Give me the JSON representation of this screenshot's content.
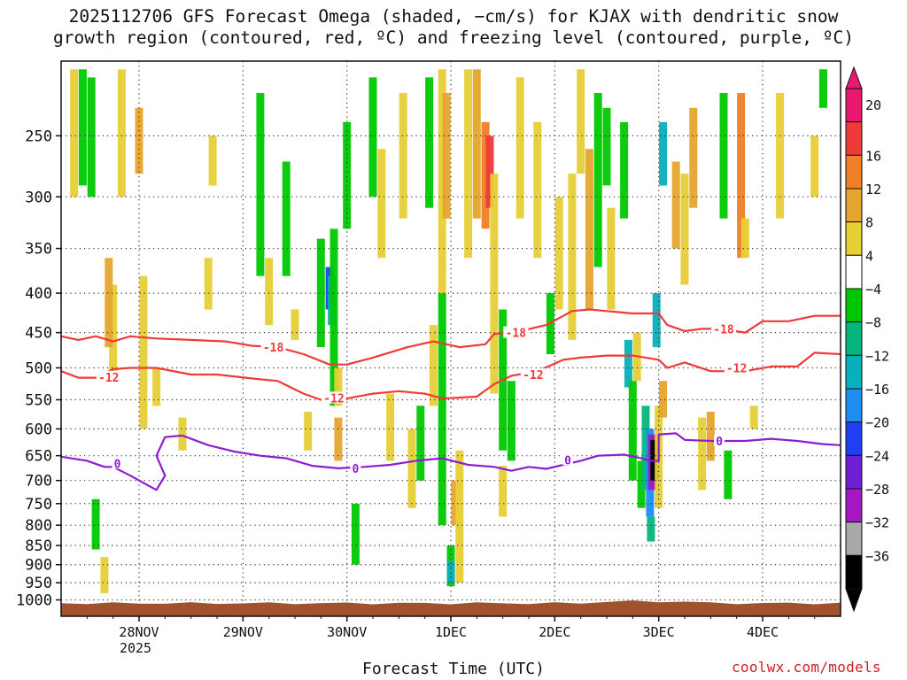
{
  "chart_data": {
    "type": "heatmap",
    "title_line1": "2025112706 GFS Forecast Omega (shaded, −cm/s) for KJAX with dendritic snow",
    "title_line2": "growth region (contoured, red, ºC) and freezing level (contoured, purple, ºC)",
    "xlabel": "Forecast Time (UTC)",
    "ylabel": "",
    "x_ticks": [
      {
        "label": "28NOV",
        "sub": "2025",
        "hours": 18
      },
      {
        "label": "29NOV",
        "sub": "",
        "hours": 42
      },
      {
        "label": "30NOV",
        "sub": "",
        "hours": 66
      },
      {
        "label": "1DEC",
        "sub": "",
        "hours": 90
      },
      {
        "label": "2DEC",
        "sub": "",
        "hours": 114
      },
      {
        "label": "3DEC",
        "sub": "",
        "hours": 138
      },
      {
        "label": "4DEC",
        "sub": "",
        "hours": 162
      }
    ],
    "x_range_hours": [
      0,
      180
    ],
    "y_axis": "pressure_hPa",
    "y_range": [
      200,
      1050
    ],
    "y_ticks": [
      250,
      300,
      350,
      400,
      450,
      500,
      550,
      600,
      650,
      700,
      750,
      800,
      850,
      900,
      950,
      1000
    ],
    "grid": true,
    "colorbar": {
      "levels": [
        20,
        16,
        12,
        8,
        4,
        -4,
        -8,
        -12,
        -16,
        -20,
        -24,
        -28,
        -32,
        -36
      ],
      "colors": [
        "#e8196f",
        "#ef3a3a",
        "#f07f27",
        "#e6a52e",
        "#e7cf36",
        "#ffffff",
        "#00c800",
        "#05b67c",
        "#06b0bc",
        "#1c8ef0",
        "#1e3ff2",
        "#6d20d6",
        "#a617c2",
        "#a8a8a8",
        "#000000"
      ],
      "top_color": "#e8196f",
      "bottom_color": "#000000"
    },
    "omega_cells": [
      {
        "t": 3,
        "p0": 205,
        "p1": 300,
        "v": 6
      },
      {
        "t": 5,
        "p0": 205,
        "p1": 290,
        "v": -6
      },
      {
        "t": 7,
        "p0": 210,
        "p1": 300,
        "v": -6
      },
      {
        "t": 12,
        "p0": 390,
        "p1": 520,
        "v": 5
      },
      {
        "t": 14,
        "p0": 205,
        "p1": 300,
        "v": 6
      },
      {
        "t": 11,
        "p0": 360,
        "p1": 470,
        "v": 10
      },
      {
        "t": 18,
        "p0": 230,
        "p1": 280,
        "v": 9
      },
      {
        "t": 19,
        "p0": 380,
        "p1": 600,
        "v": 5
      },
      {
        "t": 8,
        "p0": 740,
        "p1": 860,
        "v": -6
      },
      {
        "t": 10,
        "p0": 880,
        "p1": 980,
        "v": 5
      },
      {
        "t": 22,
        "p0": 500,
        "p1": 560,
        "v": 5
      },
      {
        "t": 28,
        "p0": 580,
        "p1": 640,
        "v": 5
      },
      {
        "t": 34,
        "p0": 360,
        "p1": 420,
        "v": 5
      },
      {
        "t": 35,
        "p0": 250,
        "p1": 290,
        "v": 5
      },
      {
        "t": 46,
        "p0": 220,
        "p1": 380,
        "v": -6
      },
      {
        "t": 48,
        "p0": 360,
        "p1": 440,
        "v": 5
      },
      {
        "t": 52,
        "p0": 270,
        "p1": 380,
        "v": -6
      },
      {
        "t": 54,
        "p0": 420,
        "p1": 460,
        "v": 5
      },
      {
        "t": 57,
        "p0": 570,
        "p1": 640,
        "v": 5
      },
      {
        "t": 60,
        "p0": 340,
        "p1": 470,
        "v": -7
      },
      {
        "t": 62,
        "p0": 370,
        "p1": 420,
        "v": -22
      },
      {
        "t": 62.5,
        "p0": 380,
        "p1": 440,
        "v": -14
      },
      {
        "t": 63,
        "p0": 330,
        "p1": 560,
        "v": -6
      },
      {
        "t": 64,
        "p0": 580,
        "p1": 660,
        "v": 10
      },
      {
        "t": 64,
        "p0": 500,
        "p1": 560,
        "v": 5
      },
      {
        "t": 66,
        "p0": 240,
        "p1": 330,
        "v": -6
      },
      {
        "t": 68,
        "p0": 750,
        "p1": 900,
        "v": -6
      },
      {
        "t": 72,
        "p0": 210,
        "p1": 300,
        "v": -6
      },
      {
        "t": 74,
        "p0": 260,
        "p1": 360,
        "v": 5
      },
      {
        "t": 76,
        "p0": 540,
        "p1": 660,
        "v": 5
      },
      {
        "t": 79,
        "p0": 220,
        "p1": 320,
        "v": 5
      },
      {
        "t": 81,
        "p0": 600,
        "p1": 760,
        "v": 5
      },
      {
        "t": 83,
        "p0": 560,
        "p1": 700,
        "v": -6
      },
      {
        "t": 85,
        "p0": 210,
        "p1": 310,
        "v": -6
      },
      {
        "t": 86,
        "p0": 440,
        "p1": 560,
        "v": 5
      },
      {
        "t": 88,
        "p0": 400,
        "p1": 800,
        "v": -6
      },
      {
        "t": 88,
        "p0": 205,
        "p1": 400,
        "v": 5
      },
      {
        "t": 89,
        "p0": 220,
        "p1": 320,
        "v": 10
      },
      {
        "t": 90,
        "p0": 850,
        "p1": 960,
        "v": -8
      },
      {
        "t": 90,
        "p0": 890,
        "p1": 950,
        "v": -16
      },
      {
        "t": 91,
        "p0": 700,
        "p1": 800,
        "v": 10
      },
      {
        "t": 92,
        "p0": 640,
        "p1": 950,
        "v": 5
      },
      {
        "t": 94,
        "p0": 205,
        "p1": 360,
        "v": 5
      },
      {
        "t": 96,
        "p0": 205,
        "p1": 320,
        "v": 10
      },
      {
        "t": 98,
        "p0": 240,
        "p1": 330,
        "v": 13
      },
      {
        "t": 99,
        "p0": 250,
        "p1": 310,
        "v": 18
      },
      {
        "t": 100,
        "p0": 280,
        "p1": 540,
        "v": 5
      },
      {
        "t": 102,
        "p0": 420,
        "p1": 640,
        "v": -6
      },
      {
        "t": 102,
        "p0": 670,
        "p1": 780,
        "v": 5
      },
      {
        "t": 104,
        "p0": 520,
        "p1": 660,
        "v": -6
      },
      {
        "t": 106,
        "p0": 210,
        "p1": 320,
        "v": 5
      },
      {
        "t": 110,
        "p0": 240,
        "p1": 360,
        "v": 5
      },
      {
        "t": 113,
        "p0": 400,
        "p1": 480,
        "v": -6
      },
      {
        "t": 115,
        "p0": 300,
        "p1": 420,
        "v": 5
      },
      {
        "t": 118,
        "p0": 280,
        "p1": 460,
        "v": 5
      },
      {
        "t": 120,
        "p0": 205,
        "p1": 280,
        "v": 5
      },
      {
        "t": 122,
        "p0": 260,
        "p1": 420,
        "v": 10
      },
      {
        "t": 124,
        "p0": 220,
        "p1": 370,
        "v": -6
      },
      {
        "t": 126,
        "p0": 230,
        "p1": 290,
        "v": -7
      },
      {
        "t": 127,
        "p0": 310,
        "p1": 420,
        "v": 5
      },
      {
        "t": 130,
        "p0": 240,
        "p1": 320,
        "v": -6
      },
      {
        "t": 131,
        "p0": 460,
        "p1": 530,
        "v": -14
      },
      {
        "t": 132,
        "p0": 520,
        "p1": 700,
        "v": -8
      },
      {
        "t": 133,
        "p0": 450,
        "p1": 520,
        "v": 5
      },
      {
        "t": 134,
        "p0": 660,
        "p1": 760,
        "v": -6
      },
      {
        "t": 135,
        "p0": 560,
        "p1": 720,
        "v": -12
      },
      {
        "t": 136,
        "p0": 600,
        "p1": 780,
        "v": -20
      },
      {
        "t": 136.5,
        "p0": 610,
        "p1": 720,
        "v": -30
      },
      {
        "t": 137,
        "p0": 620,
        "p1": 700,
        "v": -40
      },
      {
        "t": 136.2,
        "p0": 780,
        "p1": 840,
        "v": -12
      },
      {
        "t": 137.5,
        "p0": 400,
        "p1": 470,
        "v": -14
      },
      {
        "t": 138,
        "p0": 560,
        "p1": 760,
        "v": 5
      },
      {
        "t": 139,
        "p0": 520,
        "p1": 580,
        "v": 10
      },
      {
        "t": 139,
        "p0": 240,
        "p1": 290,
        "v": -14
      },
      {
        "t": 142,
        "p0": 270,
        "p1": 350,
        "v": 9
      },
      {
        "t": 144,
        "p0": 280,
        "p1": 390,
        "v": 5
      },
      {
        "t": 146,
        "p0": 230,
        "p1": 310,
        "v": 10
      },
      {
        "t": 148,
        "p0": 580,
        "p1": 720,
        "v": 5
      },
      {
        "t": 150,
        "p0": 570,
        "p1": 660,
        "v": 10
      },
      {
        "t": 153,
        "p0": 220,
        "p1": 320,
        "v": -6
      },
      {
        "t": 154,
        "p0": 640,
        "p1": 740,
        "v": -6
      },
      {
        "t": 157,
        "p0": 220,
        "p1": 360,
        "v": 13
      },
      {
        "t": 158,
        "p0": 320,
        "p1": 360,
        "v": 5
      },
      {
        "t": 160,
        "p0": 560,
        "p1": 600,
        "v": 5
      },
      {
        "t": 166,
        "p0": 220,
        "p1": 320,
        "v": 5
      },
      {
        "t": 174,
        "p0": 250,
        "p1": 300,
        "v": 5
      },
      {
        "t": 176,
        "p0": 205,
        "p1": 230,
        "v": -6
      }
    ],
    "dgz_minus18": {
      "label": "-18",
      "color": "#ef3a3a",
      "points": [
        [
          0,
          455
        ],
        [
          4,
          460
        ],
        [
          8,
          455
        ],
        [
          12,
          462
        ],
        [
          16,
          455
        ],
        [
          22,
          458
        ],
        [
          30,
          460
        ],
        [
          38,
          462
        ],
        [
          44,
          468
        ],
        [
          50,
          470
        ],
        [
          56,
          480
        ],
        [
          62,
          495
        ],
        [
          66,
          495
        ],
        [
          72,
          485
        ],
        [
          80,
          470
        ],
        [
          86,
          462
        ],
        [
          92,
          470
        ],
        [
          98,
          466
        ],
        [
          100,
          452
        ],
        [
          106,
          448
        ],
        [
          112,
          440
        ],
        [
          116,
          428
        ],
        [
          118,
          422
        ],
        [
          122,
          420
        ],
        [
          126,
          422
        ],
        [
          132,
          425
        ],
        [
          138,
          425
        ],
        [
          140,
          440
        ],
        [
          144,
          448
        ],
        [
          148,
          445
        ],
        [
          152,
          445
        ],
        [
          158,
          450
        ],
        [
          162,
          435
        ],
        [
          168,
          435
        ],
        [
          174,
          428
        ],
        [
          180,
          428
        ]
      ]
    },
    "dgz_minus12": {
      "label": "-12",
      "color": "#ef3a3a",
      "points": [
        [
          0,
          505
        ],
        [
          4,
          515
        ],
        [
          8,
          515
        ],
        [
          12,
          502
        ],
        [
          16,
          500
        ],
        [
          22,
          500
        ],
        [
          30,
          510
        ],
        [
          36,
          510
        ],
        [
          44,
          516
        ],
        [
          50,
          520
        ],
        [
          56,
          540
        ],
        [
          60,
          550
        ],
        [
          66,
          548
        ],
        [
          72,
          540
        ],
        [
          78,
          536
        ],
        [
          84,
          540
        ],
        [
          88,
          548
        ],
        [
          96,
          545
        ],
        [
          100,
          525
        ],
        [
          104,
          512
        ],
        [
          110,
          505
        ],
        [
          116,
          488
        ],
        [
          120,
          485
        ],
        [
          126,
          482
        ],
        [
          132,
          482
        ],
        [
          138,
          488
        ],
        [
          140,
          500
        ],
        [
          144,
          492
        ],
        [
          150,
          505
        ],
        [
          158,
          505
        ],
        [
          164,
          498
        ],
        [
          170,
          498
        ],
        [
          174,
          478
        ],
        [
          180,
          480
        ]
      ]
    },
    "freezing_level": {
      "label": "0",
      "color": "#8f1cd0",
      "points": [
        [
          0,
          652
        ],
        [
          6,
          660
        ],
        [
          10,
          672
        ],
        [
          12,
          672
        ],
        [
          16,
          690
        ],
        [
          20,
          710
        ],
        [
          22,
          720
        ],
        [
          24,
          690
        ],
        [
          22,
          650
        ],
        [
          24,
          615
        ],
        [
          28,
          612
        ],
        [
          34,
          630
        ],
        [
          40,
          642
        ],
        [
          46,
          650
        ],
        [
          52,
          655
        ],
        [
          58,
          670
        ],
        [
          64,
          675
        ],
        [
          70,
          672
        ],
        [
          76,
          668
        ],
        [
          82,
          660
        ],
        [
          88,
          655
        ],
        [
          94,
          668
        ],
        [
          100,
          672
        ],
        [
          104,
          680
        ],
        [
          108,
          672
        ],
        [
          112,
          676
        ],
        [
          116,
          668
        ],
        [
          120,
          660
        ],
        [
          124,
          650
        ],
        [
          130,
          648
        ],
        [
          134,
          655
        ],
        [
          136,
          660
        ],
        [
          138,
          660
        ],
        [
          138,
          610
        ],
        [
          142,
          608
        ],
        [
          144,
          620
        ],
        [
          150,
          622
        ],
        [
          158,
          622
        ],
        [
          164,
          618
        ],
        [
          170,
          622
        ],
        [
          176,
          628
        ],
        [
          180,
          630
        ]
      ]
    },
    "contour_labels": [
      {
        "text": "-18",
        "t": 49,
        "p": 470,
        "color": "#ef3a3a"
      },
      {
        "text": "-18",
        "t": 105,
        "p": 450,
        "color": "#ef3a3a"
      },
      {
        "text": "-18",
        "t": 153,
        "p": 445,
        "color": "#ef3a3a"
      },
      {
        "text": "-12",
        "t": 11,
        "p": 514,
        "color": "#ef3a3a"
      },
      {
        "text": "-12",
        "t": 63,
        "p": 547,
        "color": "#ef3a3a"
      },
      {
        "text": "-12",
        "t": 109,
        "p": 510,
        "color": "#ef3a3a"
      },
      {
        "text": "-12",
        "t": 156,
        "p": 500,
        "color": "#ef3a3a"
      },
      {
        "text": "0",
        "t": 13,
        "p": 665,
        "color": "#8f1cd0"
      },
      {
        "text": "0",
        "t": 68,
        "p": 675,
        "color": "#8f1cd0"
      },
      {
        "text": "0",
        "t": 117,
        "p": 658,
        "color": "#8f1cd0"
      },
      {
        "text": "0",
        "t": 152,
        "p": 622,
        "color": "#8f1cd0"
      }
    ],
    "ground": {
      "color": "#a0522d",
      "p": 1010
    }
  },
  "credit": "coolwx.com/models"
}
